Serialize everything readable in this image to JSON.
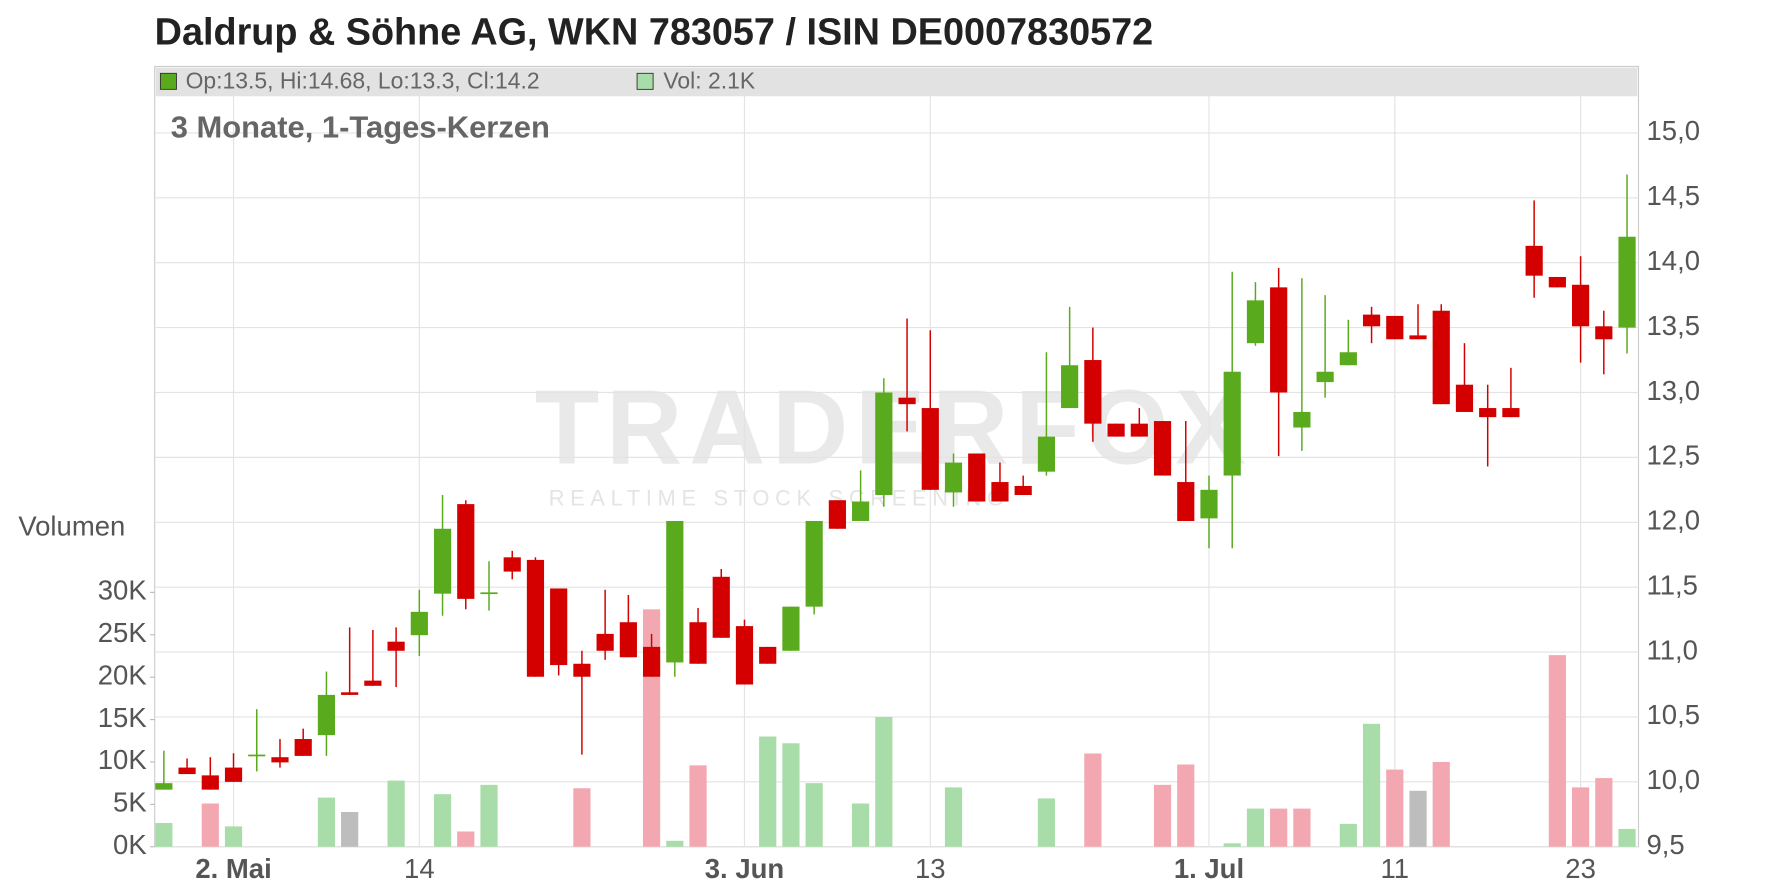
{
  "chart_data": {
    "type": "candlestick",
    "title": "Daldrup & Söhne AG, WKN 783057 / ISIN DE0007830572",
    "subtitle": "3 Monate, 1-Tages-Kerzen",
    "legend": {
      "price": "Op:13.5, Hi:14.68, Lo:13.3, Cl:14.2",
      "volume": "Vol: 2.1K"
    },
    "watermark": "TRADERFOX",
    "watermark_sub": "REALTIME STOCK SCREENING",
    "y2_label": "Volumen",
    "up_color": "#5aaa1e",
    "down_color": "#d40000",
    "open": [
      9.94,
      10.11,
      10.05,
      10.11,
      10.2,
      10.19,
      10.33,
      10.36,
      10.69,
      10.78,
      11.08,
      11.13,
      11.45,
      12.14,
      11.45,
      11.73,
      11.71,
      11.49,
      10.91,
      11.14,
      11.23,
      11.04,
      10.92,
      11.23,
      11.58,
      11.2,
      11.04,
      11.01,
      11.35,
      12.17,
      12.01,
      12.21,
      12.96,
      12.88,
      12.23,
      12.53,
      12.31,
      12.28,
      12.39,
      12.88,
      13.25,
      12.76,
      12.76,
      12.78,
      12.31,
      12.03,
      12.36,
      13.38,
      13.81,
      12.73,
      13.08,
      13.21,
      13.6,
      13.59,
      13.44,
      13.63,
      13.06,
      12.88,
      12.88,
      14.13,
      13.89,
      13.83,
      13.51,
      13.5
    ],
    "high": [
      10.24,
      10.18,
      10.19,
      10.22,
      10.56,
      10.33,
      10.41,
      10.85,
      11.19,
      11.17,
      11.19,
      11.48,
      12.21,
      12.17,
      11.7,
      11.78,
      11.73,
      11.49,
      11.01,
      11.48,
      11.44,
      11.14,
      12.01,
      11.34,
      11.64,
      11.25,
      11.04,
      11.35,
      12.01,
      12.17,
      12.4,
      13.11,
      13.57,
      13.48,
      12.53,
      12.53,
      12.46,
      12.36,
      13.31,
      13.66,
      13.5,
      12.76,
      12.88,
      12.78,
      12.78,
      12.36,
      13.93,
      13.85,
      13.96,
      13.88,
      13.75,
      13.56,
      13.66,
      13.59,
      13.68,
      13.68,
      13.38,
      13.06,
      13.19,
      14.48,
      13.89,
      14.05,
      13.63,
      14.68
    ],
    "low": [
      9.94,
      10.06,
      9.94,
      10.0,
      10.08,
      10.11,
      10.2,
      10.2,
      10.67,
      10.74,
      10.73,
      10.97,
      11.28,
      11.33,
      11.32,
      11.56,
      10.81,
      10.82,
      10.21,
      10.94,
      10.96,
      10.81,
      10.81,
      10.91,
      11.11,
      10.75,
      10.91,
      11.01,
      11.29,
      11.95,
      12.01,
      12.12,
      12.7,
      12.25,
      12.12,
      12.16,
      12.16,
      12.21,
      12.36,
      12.88,
      12.62,
      12.66,
      12.66,
      12.36,
      12.01,
      11.8,
      11.8,
      13.36,
      12.51,
      12.55,
      12.96,
      13.21,
      13.38,
      13.41,
      13.41,
      12.91,
      12.85,
      12.43,
      12.81,
      13.73,
      13.81,
      13.23,
      13.14,
      13.3
    ],
    "close": [
      9.99,
      10.06,
      9.94,
      10.0,
      10.21,
      10.15,
      10.2,
      10.67,
      10.67,
      10.74,
      11.01,
      11.31,
      11.95,
      11.41,
      11.46,
      11.62,
      10.81,
      10.9,
      10.81,
      11.01,
      10.96,
      10.81,
      12.01,
      10.91,
      11.11,
      10.75,
      10.91,
      11.35,
      12.01,
      11.95,
      12.16,
      13.0,
      12.91,
      12.25,
      12.46,
      12.16,
      12.16,
      12.21,
      12.66,
      13.21,
      12.76,
      12.66,
      12.66,
      12.36,
      12.01,
      12.25,
      13.16,
      13.71,
      13.0,
      12.85,
      13.16,
      13.31,
      13.51,
      13.41,
      13.41,
      12.91,
      12.85,
      12.81,
      12.81,
      13.9,
      13.81,
      13.51,
      13.41,
      14.2
    ],
    "volume": [
      2800,
      0,
      5100,
      2400,
      0,
      0,
      0,
      5800,
      4100,
      0,
      7800,
      0,
      6200,
      1800,
      7300,
      0,
      0,
      0,
      6900,
      0,
      0,
      28000,
      700,
      9600,
      0,
      0,
      13000,
      12200,
      7500,
      0,
      5100,
      15300,
      0,
      0,
      7000,
      0,
      0,
      0,
      5700,
      0,
      11000,
      0,
      0,
      7300,
      9700,
      0,
      400,
      4500,
      4500,
      4500,
      0,
      2700,
      14500,
      9100,
      6600,
      10000,
      0,
      0,
      0,
      0,
      22600,
      7000,
      8100,
      2100
    ],
    "volume_colors": [
      "#a8dca8",
      "#a8dca8",
      "#f2a7b1",
      "#a8dca8",
      "#a8dca8",
      "#a8dca8",
      "#a8dca8",
      "#a8dca8",
      "#bdbdbd",
      "#a8dca8",
      "#a8dca8",
      "#a8dca8",
      "#a8dca8",
      "#f2a7b1",
      "#a8dca8",
      "#a8dca8",
      "#a8dca8",
      "#a8dca8",
      "#f2a7b1",
      "#a8dca8",
      "#a8dca8",
      "#f2a7b1",
      "#a8dca8",
      "#f2a7b1",
      "#a8dca8",
      "#a8dca8",
      "#a8dca8",
      "#a8dca8",
      "#a8dca8",
      "#a8dca8",
      "#a8dca8",
      "#a8dca8",
      "#a8dca8",
      "#a8dca8",
      "#a8dca8",
      "#a8dca8",
      "#a8dca8",
      "#a8dca8",
      "#a8dca8",
      "#a8dca8",
      "#f2a7b1",
      "#a8dca8",
      "#a8dca8",
      "#f2a7b1",
      "#f2a7b1",
      "#a8dca8",
      "#a8dca8",
      "#a8dca8",
      "#f2a7b1",
      "#f2a7b1",
      "#a8dca8",
      "#a8dca8",
      "#a8dca8",
      "#f2a7b1",
      "#bdbdbd",
      "#f2a7b1",
      "#a8dca8",
      "#a8dca8",
      "#a8dca8",
      "#a8dca8",
      "#f2a7b1",
      "#f2a7b1",
      "#f2a7b1",
      "#a8dca8"
    ],
    "xlim": [
      -0.4,
      63.5
    ],
    "xticks": [
      {
        "value": 3,
        "label": "2. Mai"
      },
      {
        "value": 11,
        "label": "14"
      },
      {
        "value": 25,
        "label": "3. Jun"
      },
      {
        "value": 33,
        "label": "13"
      },
      {
        "value": 45,
        "label": "1. Jul"
      },
      {
        "value": 53,
        "label": "11"
      },
      {
        "value": 61,
        "label": "23"
      }
    ],
    "ylim": [
      9.5,
      15.0
    ],
    "yticks": [
      {
        "value": 9.5,
        "label": "9,5"
      },
      {
        "value": 10,
        "label": "10,0"
      },
      {
        "value": 10.5,
        "label": "10,5"
      },
      {
        "value": 11,
        "label": "11,0"
      },
      {
        "value": 11.5,
        "label": "11,5"
      },
      {
        "value": 12,
        "label": "12,0"
      },
      {
        "value": 12.5,
        "label": "12,5"
      },
      {
        "value": 13,
        "label": "13,0"
      },
      {
        "value": 13.5,
        "label": "13,5"
      },
      {
        "value": 14,
        "label": "14,0"
      },
      {
        "value": 14.5,
        "label": "14,5"
      },
      {
        "value": 15,
        "label": "15,0"
      }
    ],
    "y2lim": [
      0,
      30000
    ],
    "y2ticks": [
      {
        "value": 0,
        "label": "0K"
      },
      {
        "value": 5000,
        "label": "5K"
      },
      {
        "value": 10000,
        "label": "10K"
      },
      {
        "value": 15000,
        "label": "15K"
      },
      {
        "value": 20000,
        "label": "20K"
      },
      {
        "value": 25000,
        "label": "25K"
      },
      {
        "value": 30000,
        "label": "30K"
      }
    ],
    "grid": true
  }
}
